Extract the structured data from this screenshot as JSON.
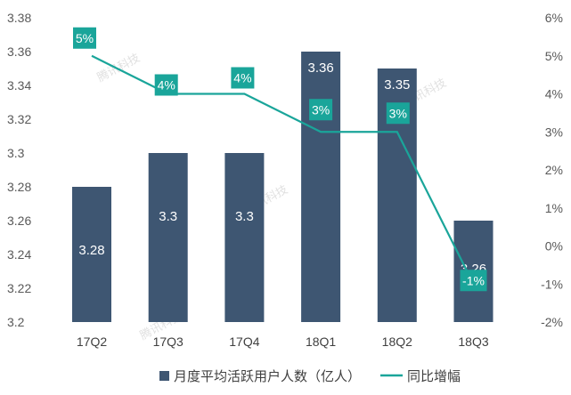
{
  "chart_data": {
    "type": "bar+line",
    "categories": [
      "17Q2",
      "17Q3",
      "17Q4",
      "18Q1",
      "18Q2",
      "18Q3"
    ],
    "series": [
      {
        "name": "月度平均活跃用户人数（亿人）",
        "type": "bar",
        "axis": "left",
        "values": [
          3.28,
          3.3,
          3.3,
          3.36,
          3.35,
          3.26
        ],
        "labels": [
          "3.28",
          "3.3",
          "3.3",
          "3.36",
          "3.35",
          "3.26"
        ],
        "color": "#3e5672"
      },
      {
        "name": "同比增幅",
        "type": "line",
        "axis": "right",
        "values": [
          5,
          4,
          4,
          3,
          3,
          -1
        ],
        "labels": [
          "5%",
          "4%",
          "4%",
          "3%",
          "3%",
          "-1%"
        ],
        "color": "#1aa59a"
      }
    ],
    "left_axis": {
      "ylim": [
        3.2,
        3.38
      ],
      "ticks": [
        "3.2",
        "3.22",
        "3.24",
        "3.26",
        "3.28",
        "3.3",
        "3.32",
        "3.34",
        "3.36",
        "3.38"
      ]
    },
    "right_axis": {
      "ylim": [
        -2,
        6
      ],
      "ticks": [
        "-2%",
        "-1%",
        "0%",
        "1%",
        "2%",
        "3%",
        "4%",
        "5%",
        "6%"
      ]
    },
    "legend_position": "bottom",
    "watermark": "腾讯科技"
  }
}
